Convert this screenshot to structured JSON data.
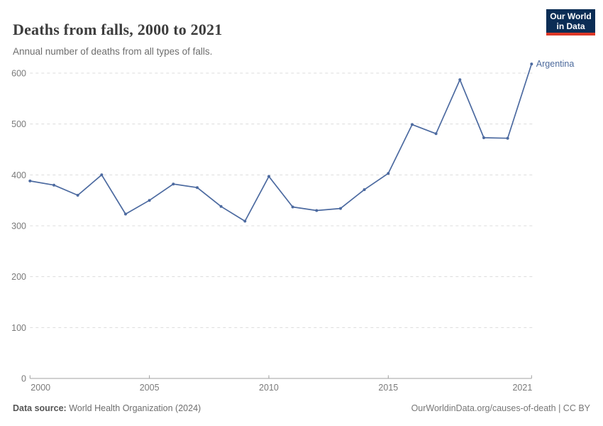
{
  "header": {
    "title": "Deaths from falls, 2000 to 2021",
    "subtitle": "Annual number of deaths from all types of falls.",
    "logo": {
      "line1": "Our World",
      "line2": "in Data"
    }
  },
  "chart_data": {
    "type": "line",
    "title": "Deaths from falls, 2000 to 2021",
    "xlabel": "",
    "ylabel": "",
    "xlim": [
      2000,
      2021
    ],
    "ylim": [
      0,
      600
    ],
    "x_ticks": [
      2000,
      2005,
      2010,
      2015,
      2021
    ],
    "y_ticks": [
      0,
      100,
      200,
      300,
      400,
      500,
      600
    ],
    "grid": "horizontal-dashed",
    "legend_position": "end-of-line-label",
    "series": [
      {
        "name": "Argentina",
        "color": "#4C6AA0",
        "x": [
          2000,
          2001,
          2002,
          2003,
          2004,
          2005,
          2006,
          2007,
          2008,
          2009,
          2010,
          2011,
          2012,
          2013,
          2014,
          2015,
          2016,
          2017,
          2018,
          2019,
          2020,
          2021
        ],
        "values": [
          388,
          380,
          360,
          400,
          323,
          350,
          382,
          375,
          338,
          309,
          397,
          337,
          330,
          334,
          371,
          403,
          499,
          481,
          587,
          473,
          472,
          618
        ]
      }
    ]
  },
  "footer": {
    "datasource_label": "Data source:",
    "datasource_value": " World Health Organization (2024)",
    "credit": "OurWorldinData.org/causes-of-death | CC BY"
  },
  "colors": {
    "line": "#4C6AA0",
    "series_label": "#4C6A9C",
    "grid": "#dcdcdc",
    "axis": "#a0a0a0",
    "tick_label": "#7a7a7a",
    "logo_bg": "#0b2d55",
    "logo_red": "#dd3827"
  }
}
